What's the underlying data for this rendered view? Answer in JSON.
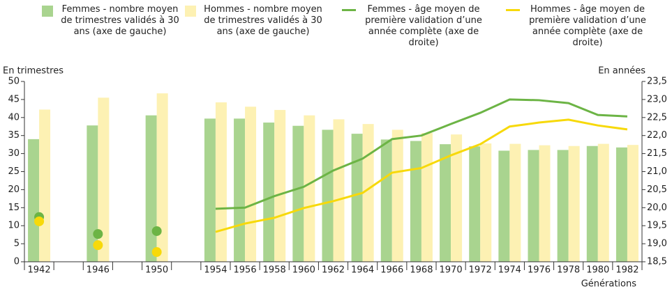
{
  "chart_data": {
    "type": "bar_line",
    "y_label": "En trimestres",
    "y2_label": "En années",
    "x_label": "Générations",
    "categories": [
      "1942",
      null,
      "1946",
      null,
      "1950",
      null,
      "1954",
      "1956",
      "1958",
      "1960",
      "1962",
      "1964",
      "1966",
      "1968",
      "1970",
      "1972",
      "1974",
      "1976",
      "1978",
      "1980",
      "1982"
    ],
    "ylim": [
      0,
      50
    ],
    "yticks": [
      0,
      5,
      10,
      15,
      20,
      25,
      30,
      35,
      40,
      45,
      50
    ],
    "y2lim": [
      18.5,
      23.5
    ],
    "y2ticks": [
      {
        "value": 18.5,
        "label": "18,5"
      },
      {
        "value": 19,
        "label": "19,0"
      },
      {
        "value": 19.5,
        "label": "19,5"
      },
      {
        "value": 20,
        "label": "20,0"
      },
      {
        "value": 20.5,
        "label": "20,5"
      },
      {
        "value": 21,
        "label": "21,0"
      },
      {
        "value": 21.5,
        "label": "21,5"
      },
      {
        "value": 22,
        "label": "22,0"
      },
      {
        "value": 22.5,
        "label": "22,5"
      },
      {
        "value": 23,
        "label": "23,0"
      },
      {
        "value": 23.5,
        "label": "23,5"
      }
    ],
    "series": [
      {
        "name": "Femmes - nombre moyen de trimestres validés à 30 ans (axe de gauche)",
        "type": "bar",
        "color": "#a9d48f",
        "values": [
          34,
          null,
          37.8,
          null,
          40.6,
          null,
          39.7,
          39.7,
          38.6,
          37.7,
          36.6,
          35.5,
          33.9,
          33.5,
          32.6,
          32,
          30.8,
          31,
          31,
          32.1,
          31.7
        ]
      },
      {
        "name": "Hommes - nombre moyen de trimestres validés à 30 ans (axe de gauche)",
        "type": "bar",
        "color": "#fdf1b3",
        "values": [
          42.2,
          null,
          45.5,
          null,
          46.7,
          null,
          44.2,
          43,
          42.1,
          40.6,
          39.5,
          38.2,
          36.6,
          35.7,
          35.3,
          32.8,
          32.7,
          32.3,
          32.1,
          32.7,
          32.4
        ]
      },
      {
        "name": "Femmes - âge moyen de première validation d’une année complète (axe de droite)",
        "type": "line",
        "axis": "y2",
        "color": "#6cb445",
        "values": [
          19.74,
          null,
          19.27,
          null,
          19.35,
          null,
          19.97,
          20.0,
          20.32,
          20.58,
          21.03,
          21.36,
          21.9,
          22.0,
          22.32,
          22.63,
          23.0,
          22.98,
          22.9,
          22.57,
          22.53
        ]
      },
      {
        "name": "Hommes - âge moyen de première validation d’une année complète (axe de droite)",
        "type": "line",
        "axis": "y2",
        "color": "#f7d90a",
        "values": [
          19.62,
          null,
          18.96,
          null,
          18.77,
          null,
          19.33,
          19.56,
          19.72,
          19.99,
          20.18,
          20.41,
          20.97,
          21.1,
          21.45,
          21.76,
          22.25,
          22.36,
          22.44,
          22.28,
          22.17
        ]
      }
    ]
  }
}
